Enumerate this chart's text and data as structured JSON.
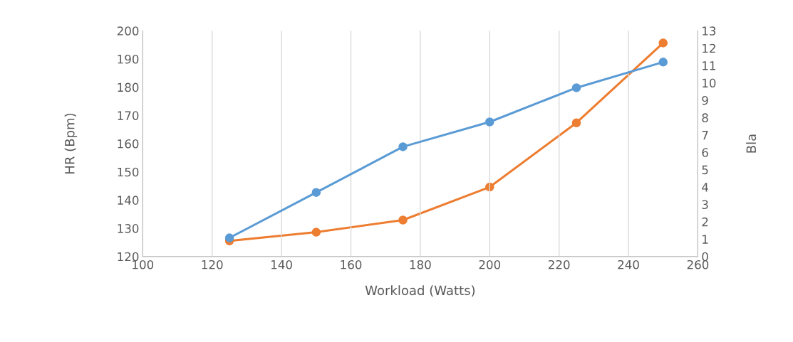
{
  "chart_data": {
    "type": "line",
    "xlabel": "Workload (Watts)",
    "ylabel": "HR (Bpm)",
    "y2label": "Bla",
    "xlim": [
      100,
      260
    ],
    "xticks": [
      100,
      120,
      140,
      160,
      180,
      200,
      220,
      240,
      260
    ],
    "ylim": [
      120,
      200
    ],
    "yticks": [
      120,
      130,
      140,
      150,
      160,
      170,
      180,
      190,
      200
    ],
    "y2lim": [
      0,
      13
    ],
    "y2ticks": [
      0,
      1,
      2,
      3,
      4,
      5,
      6,
      7,
      8,
      9,
      10,
      11,
      12,
      13
    ],
    "x": [
      125,
      150,
      175,
      200,
      225,
      250
    ],
    "series": [
      {
        "color": "#5b9bd5",
        "values": [
          126.6,
          142.7,
          158.9,
          167.7,
          179.8,
          188.9
        ]
      },
      {
        "color": "#ed7d31",
        "axis": "y2",
        "values": [
          0.9,
          1.4,
          2.1,
          4.0,
          7.7,
          12.3
        ]
      }
    ],
    "grid": "x",
    "marker": "circle",
    "line_style": "solid"
  }
}
